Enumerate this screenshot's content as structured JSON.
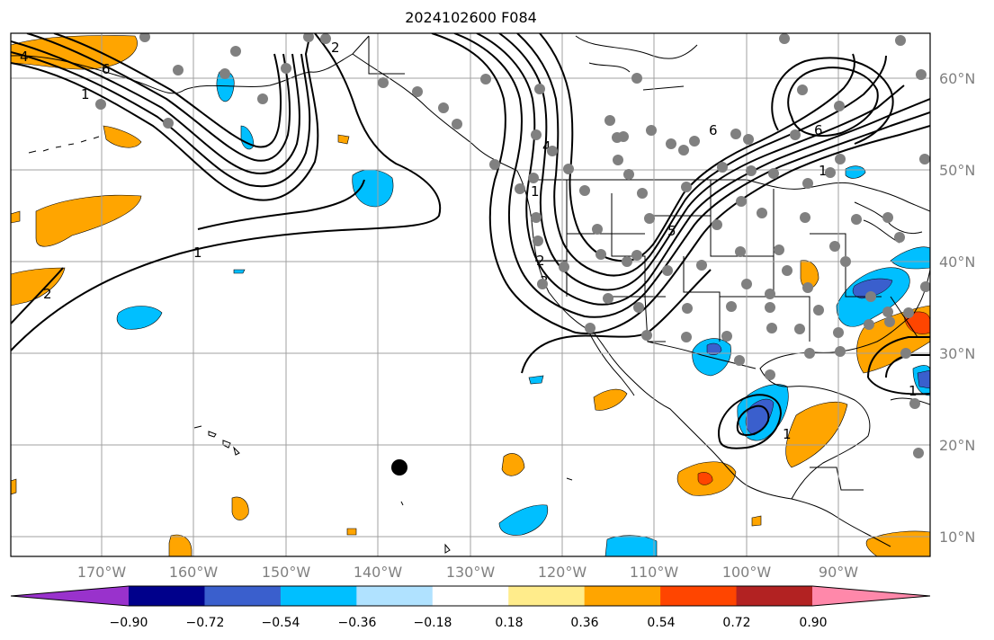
{
  "title": "2024102600 F084",
  "map": {
    "lon_labels": [
      "170°W",
      "160°W",
      "150°W",
      "140°W",
      "130°W",
      "120°W",
      "110°W",
      "100°W",
      "90°W"
    ],
    "lat_labels": [
      "60°N",
      "50°N",
      "40°N",
      "30°N",
      "20°N",
      "10°N"
    ],
    "contour_labels": [
      "4",
      "6",
      "1",
      "2",
      "1",
      "2",
      "1",
      "2",
      "4",
      "5",
      "3",
      "6",
      "6",
      "1",
      "1",
      "1"
    ],
    "marker": "large black dot"
  },
  "colorbar": {
    "ticks": [
      "−0.90",
      "−0.72",
      "−0.54",
      "−0.36",
      "−0.18",
      "0.18",
      "0.36",
      "0.54",
      "0.72",
      "0.90"
    ],
    "colors": [
      "#9932cc",
      "#00008b",
      "#3a5fcd",
      "#00bfff",
      "#b0e2ff",
      "#ffffff",
      "#ffec8b",
      "#ffa500",
      "#ff4500",
      "#b22222",
      "#ff88aa"
    ]
  }
}
